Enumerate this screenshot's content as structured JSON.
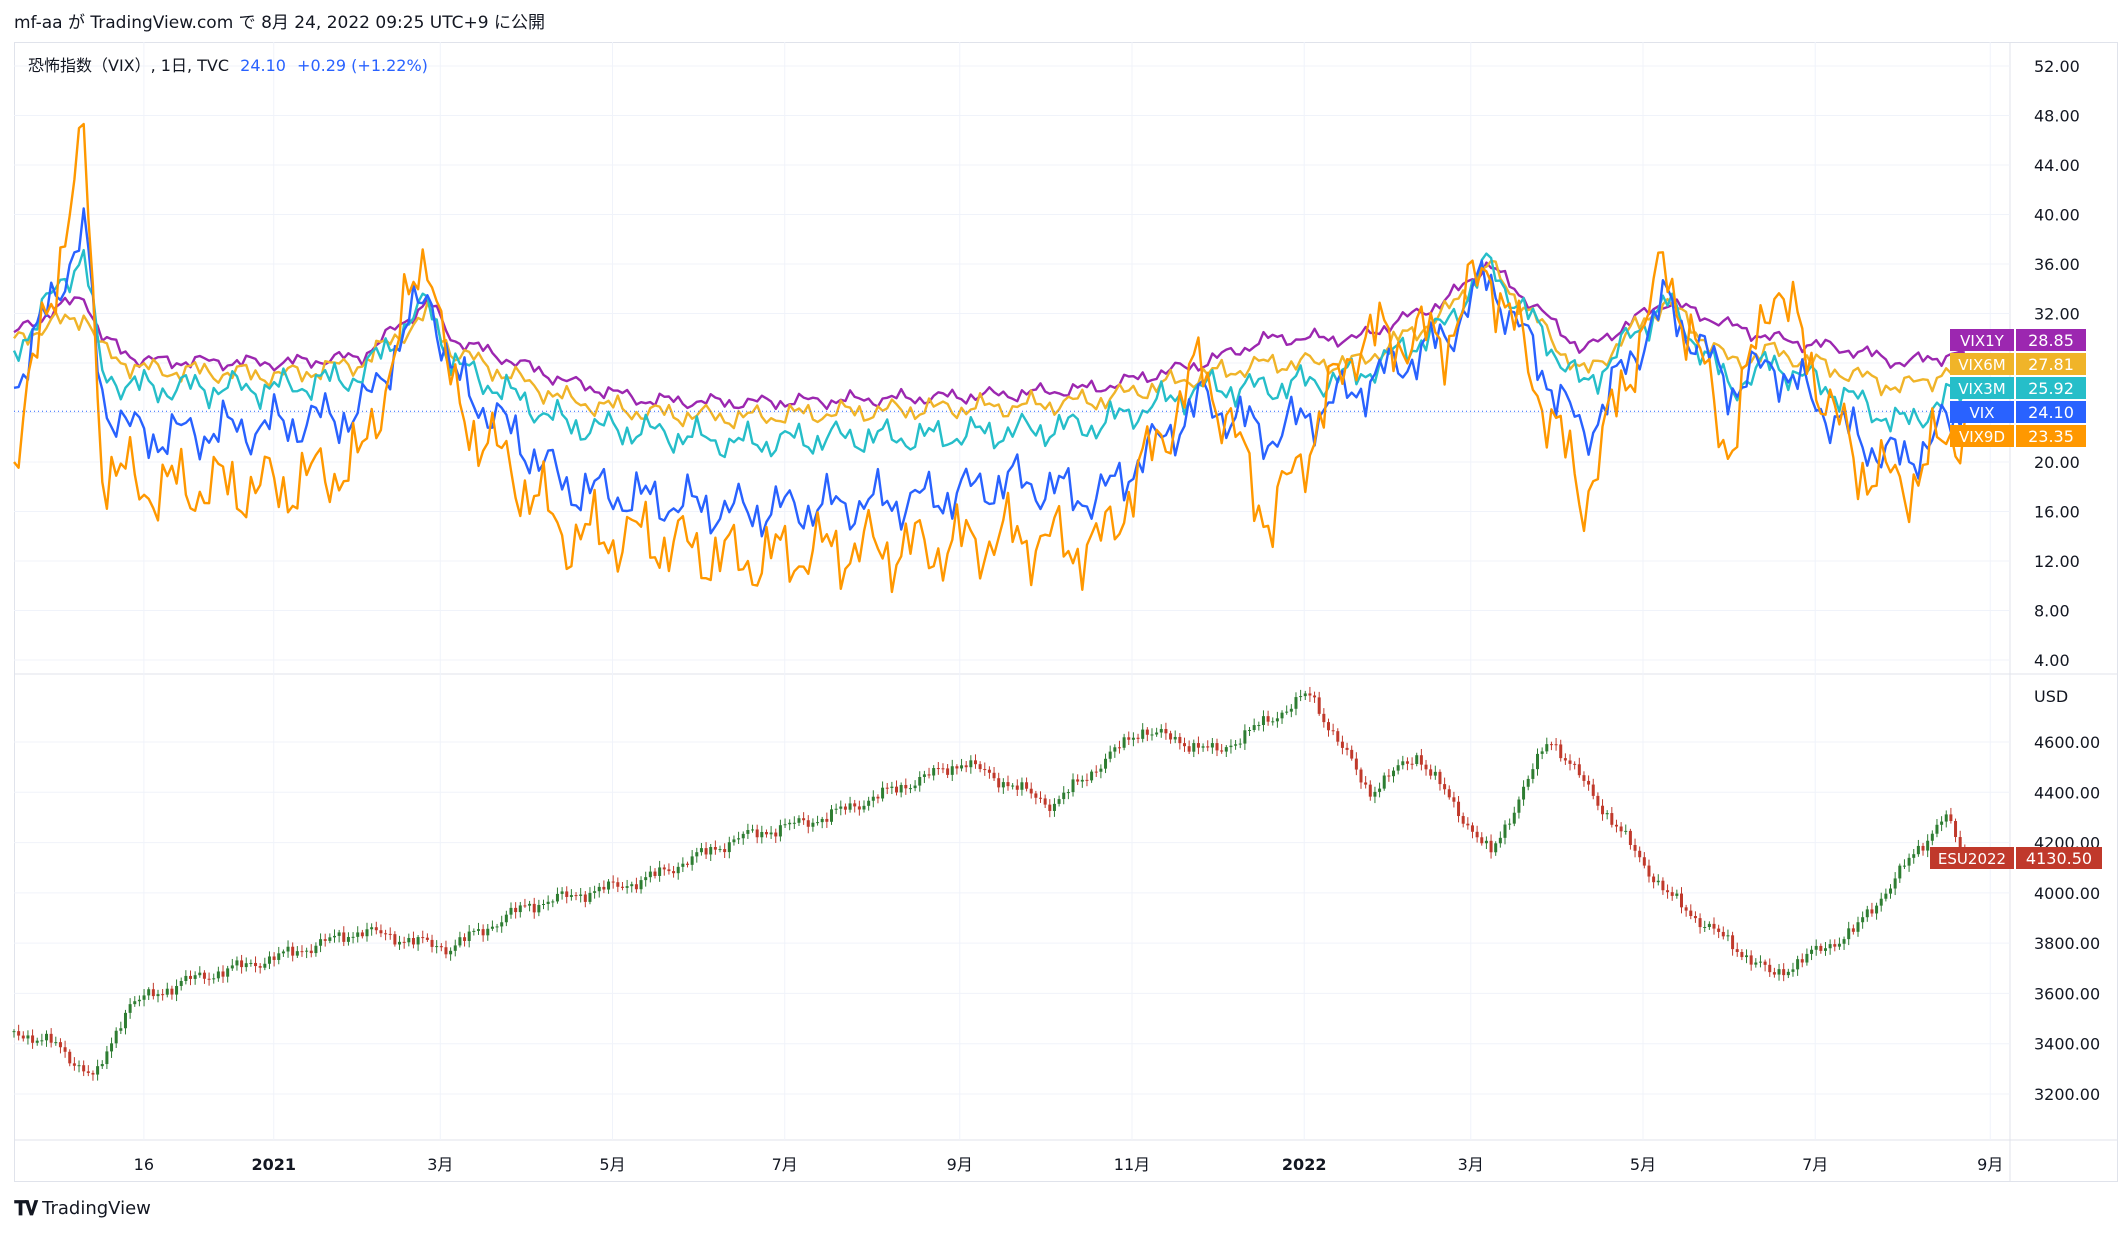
{
  "header": {
    "publish_line": "mf-aa が TradingView.com で 8月 24, 2022 09:25 UTC+9 に公開"
  },
  "legend": {
    "name": "恐怖指数（VIX）, 1日, TVC",
    "value": "24.10",
    "change": "+0.29 (+1.22%)"
  },
  "footer": {
    "brand": "TradingView"
  },
  "colors": {
    "VIX1Y": "#9c27b0",
    "VIX6M": "#f0b429",
    "VIX3M": "#26bec9",
    "VIX": "#2962ff",
    "VIX9D": "#ff9800",
    "down": "#c0392b",
    "up": "#2e7d32"
  },
  "chart_data": [
    {
      "type": "line",
      "title": "恐怖指数（VIX）, 1日, TVC",
      "ylim": [
        4,
        52
      ],
      "yticks": [
        "52.00",
        "48.00",
        "44.00",
        "40.00",
        "36.00",
        "32.00",
        "28.00",
        "24.00",
        "20.00",
        "16.00",
        "12.00",
        "8.00",
        "4.00"
      ],
      "x_tick_labels": [
        "16",
        "2021",
        "3月",
        "5月",
        "7月",
        "9月",
        "11月",
        "2022",
        "3月",
        "5月",
        "7月",
        "9月"
      ],
      "x_dates": [
        "2020-10-01",
        "2020-10-26",
        "2020-11-01",
        "2020-11-15",
        "2021-01-04",
        "2021-02-01",
        "2021-02-25",
        "2021-03-05",
        "2021-04-15",
        "2021-05-12",
        "2021-06-15",
        "2021-07-20",
        "2021-08-20",
        "2021-09-20",
        "2021-10-20",
        "2021-11-26",
        "2021-12-20",
        "2022-01-20",
        "2022-02-20",
        "2022-03-07",
        "2022-04-10",
        "2022-05-09",
        "2022-06-01",
        "2022-06-16",
        "2022-07-15",
        "2022-08-01",
        "2022-08-23"
      ],
      "series": [
        {
          "name": "VIX1Y",
          "last_label": "28.85",
          "values": [
            30.5,
            33.5,
            30,
            28.2,
            28,
            28.5,
            33,
            30,
            26.5,
            25,
            24.8,
            25,
            25.2,
            25.5,
            26,
            28,
            30,
            30,
            33,
            36,
            29,
            33,
            31,
            30,
            29,
            28,
            28.85
          ]
        },
        {
          "name": "VIX6M",
          "last_label": "27.81",
          "values": [
            30,
            32,
            29,
            27.5,
            27,
            28,
            32,
            29,
            25,
            24,
            23.6,
            24,
            24.3,
            24.5,
            25,
            27,
            28,
            28,
            32,
            36,
            27,
            33,
            28,
            29,
            27,
            26,
            27.81
          ]
        },
        {
          "name": "VIX3M",
          "last_label": "25.92",
          "values": [
            29,
            37,
            27,
            26,
            26,
            27,
            33,
            28,
            23,
            22.5,
            21.5,
            22,
            22,
            22.5,
            23,
            26,
            26,
            27,
            31,
            36,
            26,
            33,
            26,
            28,
            25,
            23,
            25.92
          ]
        },
        {
          "name": "VIX",
          "last_label": "24.10",
          "values": [
            26,
            39,
            25,
            22,
            23,
            24,
            34,
            27,
            18,
            17,
            16,
            16.5,
            17,
            18.5,
            17,
            25,
            22,
            26,
            30,
            35,
            22,
            33,
            26,
            28,
            22,
            20,
            24.1
          ]
        },
        {
          "name": "VIX9D",
          "last_label": "23.35",
          "values": [
            20,
            46,
            20,
            18,
            18,
            20,
            38,
            25,
            14,
            14,
            12,
            13,
            13,
            14,
            13,
            28,
            15,
            30,
            30,
            36,
            17,
            36,
            21,
            35,
            20,
            18,
            23.35
          ]
        }
      ]
    },
    {
      "type": "candlestick",
      "symbol": "ESU2022",
      "ylabel": "USD",
      "last_label": "4130.50",
      "ylim": [
        3100,
        4800
      ],
      "yticks": [
        "4600.00",
        "4400.00",
        "4200.00",
        "4000.00",
        "3800.00",
        "3600.00",
        "3400.00",
        "3200.00"
      ],
      "x_dates": [
        "2020-10-01",
        "2020-10-15",
        "2020-10-30",
        "2020-11-10",
        "2020-12-01",
        "2021-01-04",
        "2021-02-01",
        "2021-03-04",
        "2021-04-01",
        "2021-05-12",
        "2021-06-15",
        "2021-07-15",
        "2021-09-02",
        "2021-10-04",
        "2021-11-04",
        "2021-12-01",
        "2022-01-03",
        "2022-01-24",
        "2022-02-10",
        "2022-03-08",
        "2022-03-29",
        "2022-05-09",
        "2022-05-20",
        "2022-06-16",
        "2022-07-15",
        "2022-08-16",
        "2022-08-23"
      ],
      "closes": [
        3450,
        3400,
        3260,
        3550,
        3650,
        3750,
        3850,
        3780,
        3950,
        4050,
        4220,
        4300,
        4520,
        4350,
        4650,
        4560,
        4790,
        4400,
        4550,
        4150,
        4620,
        4000,
        3900,
        3670,
        3850,
        4310,
        4130.5
      ]
    }
  ]
}
